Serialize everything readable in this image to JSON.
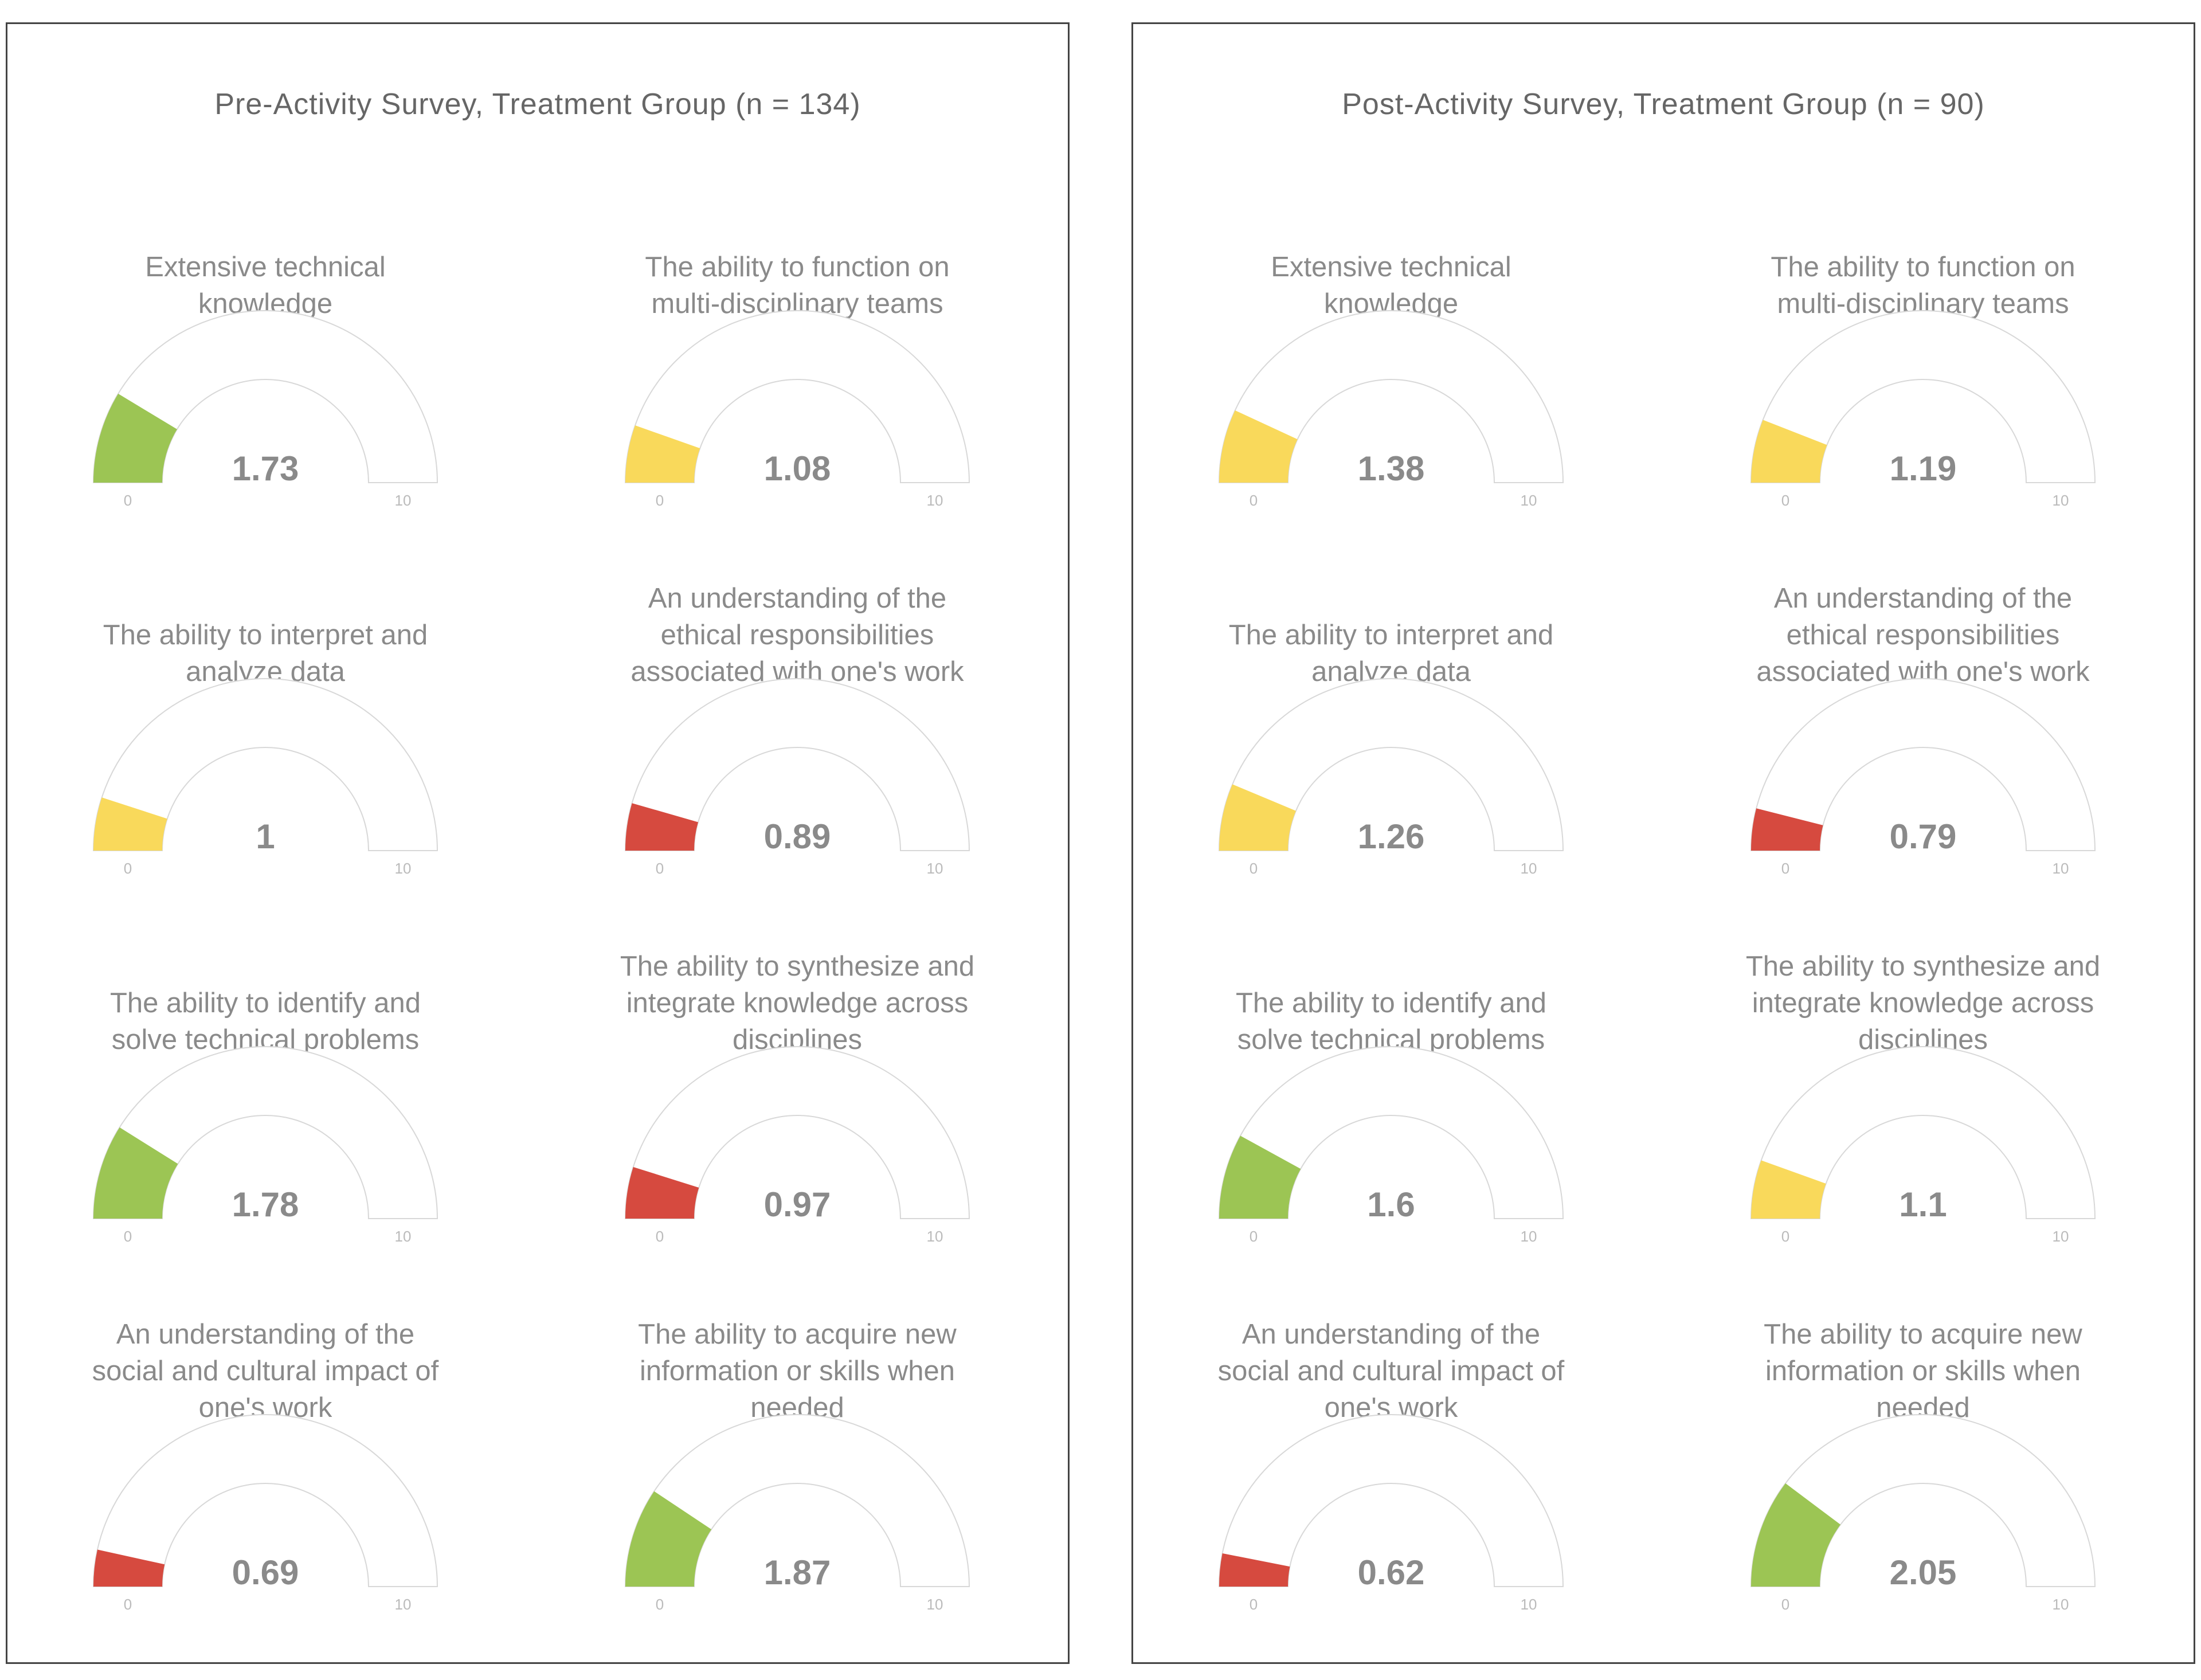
{
  "chart_data": [
    {
      "type": "gauge",
      "title": "Pre-Activity Survey, Treatment Group (n = 134)",
      "min": 0,
      "max": 10,
      "gauges": [
        {
          "label": "Extensive technical knowledge",
          "value": 1.73,
          "value_text": "1.73",
          "min_text": "0",
          "max_text": "10",
          "color": "#9cc554"
        },
        {
          "label": "The ability to function on multi-disciplinary teams",
          "value": 1.08,
          "value_text": "1.08",
          "min_text": "0",
          "max_text": "10",
          "color": "#f9d95b"
        },
        {
          "label": "The ability to interpret and analyze data",
          "value": 1,
          "value_text": "1",
          "min_text": "0",
          "max_text": "10",
          "color": "#f9d95b"
        },
        {
          "label": "An understanding of the ethical responsibilities associated with one's work",
          "value": 0.89,
          "value_text": "0.89",
          "min_text": "0",
          "max_text": "10",
          "color": "#d64a3f"
        },
        {
          "label": "The ability to identify and solve technical problems",
          "value": 1.78,
          "value_text": "1.78",
          "min_text": "0",
          "max_text": "10",
          "color": "#9cc554"
        },
        {
          "label": "The ability to synthesize and integrate knowledge across disciplines",
          "value": 0.97,
          "value_text": "0.97",
          "min_text": "0",
          "max_text": "10",
          "color": "#d64a3f"
        },
        {
          "label": "An understanding of the social and cultural impact of one's work",
          "value": 0.69,
          "value_text": "0.69",
          "min_text": "0",
          "max_text": "10",
          "color": "#d64a3f"
        },
        {
          "label": "The ability to acquire new information or skills when needed",
          "value": 1.87,
          "value_text": "1.87",
          "min_text": "0",
          "max_text": "10",
          "color": "#9cc554"
        }
      ]
    },
    {
      "type": "gauge",
      "title": "Post-Activity Survey, Treatment Group (n = 90)",
      "min": 0,
      "max": 10,
      "gauges": [
        {
          "label": "Extensive technical knowledge",
          "value": 1.38,
          "value_text": "1.38",
          "min_text": "0",
          "max_text": "10",
          "color": "#f9d95b"
        },
        {
          "label": "The ability to function on multi-disciplinary teams",
          "value": 1.19,
          "value_text": "1.19",
          "min_text": "0",
          "max_text": "10",
          "color": "#f9d95b"
        },
        {
          "label": "The ability to interpret and analyze data",
          "value": 1.26,
          "value_text": "1.26",
          "min_text": "0",
          "max_text": "10",
          "color": "#f9d95b"
        },
        {
          "label": "An understanding of the ethical responsibilities associated with one's work",
          "value": 0.79,
          "value_text": "0.79",
          "min_text": "0",
          "max_text": "10",
          "color": "#d64a3f"
        },
        {
          "label": "The ability to identify and solve technical problems",
          "value": 1.6,
          "value_text": "1.6",
          "min_text": "0",
          "max_text": "10",
          "color": "#9cc554"
        },
        {
          "label": "The ability to synthesize and integrate knowledge across disciplines",
          "value": 1.1,
          "value_text": "1.1",
          "min_text": "0",
          "max_text": "10",
          "color": "#f9d95b"
        },
        {
          "label": "An understanding of the social and cultural impact of one's work",
          "value": 0.62,
          "value_text": "0.62",
          "min_text": "0",
          "max_text": "10",
          "color": "#d64a3f"
        },
        {
          "label": "The ability to acquire new information or skills when needed",
          "value": 2.05,
          "value_text": "2.05",
          "min_text": "0",
          "max_text": "10",
          "color": "#9cc554"
        }
      ]
    }
  ]
}
